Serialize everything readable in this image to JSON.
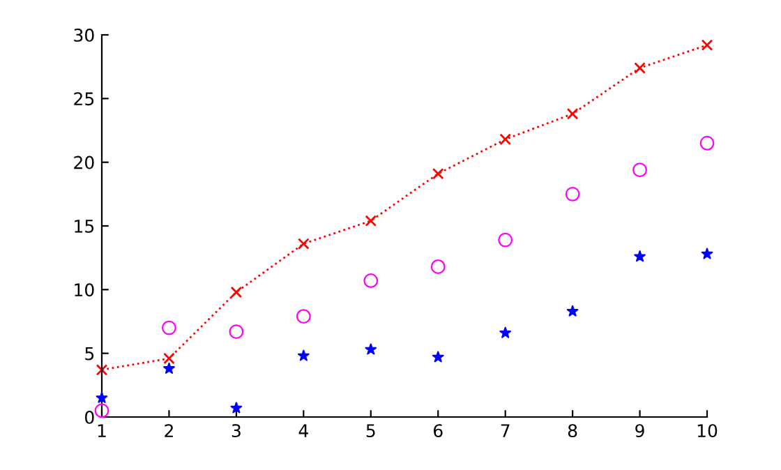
{
  "chart_data": {
    "type": "line",
    "x": [
      1,
      2,
      3,
      4,
      5,
      6,
      7,
      8,
      9,
      10
    ],
    "series": [
      {
        "color": "#ff0000",
        "marker": "cross",
        "line_style": "dotted",
        "values": [
          3.7,
          4.6,
          9.8,
          13.6,
          15.4,
          19.1,
          21.8,
          23.8,
          27.4,
          29.2
        ]
      },
      {
        "type": "scatter",
        "color": "#ff00ff",
        "marker": "circle",
        "values": [
          0.5,
          7.0,
          6.7,
          7.9,
          10.7,
          11.8,
          13.9,
          17.5,
          19.4,
          21.5
        ]
      },
      {
        "type": "scatter",
        "color": "#0000ff",
        "marker": "star",
        "values": [
          1.5,
          3.8,
          0.7,
          4.8,
          5.3,
          4.7,
          6.6,
          8.3,
          12.6,
          12.8
        ]
      }
    ],
    "xlim": [
      1,
      10
    ],
    "xticks": [
      1,
      2,
      3,
      4,
      5,
      6,
      7,
      8,
      9,
      10
    ],
    "ylim": [
      0,
      30
    ],
    "yticks": [
      0,
      5,
      10,
      15,
      20,
      25,
      30
    ],
    "grid": false,
    "legend": false
  }
}
